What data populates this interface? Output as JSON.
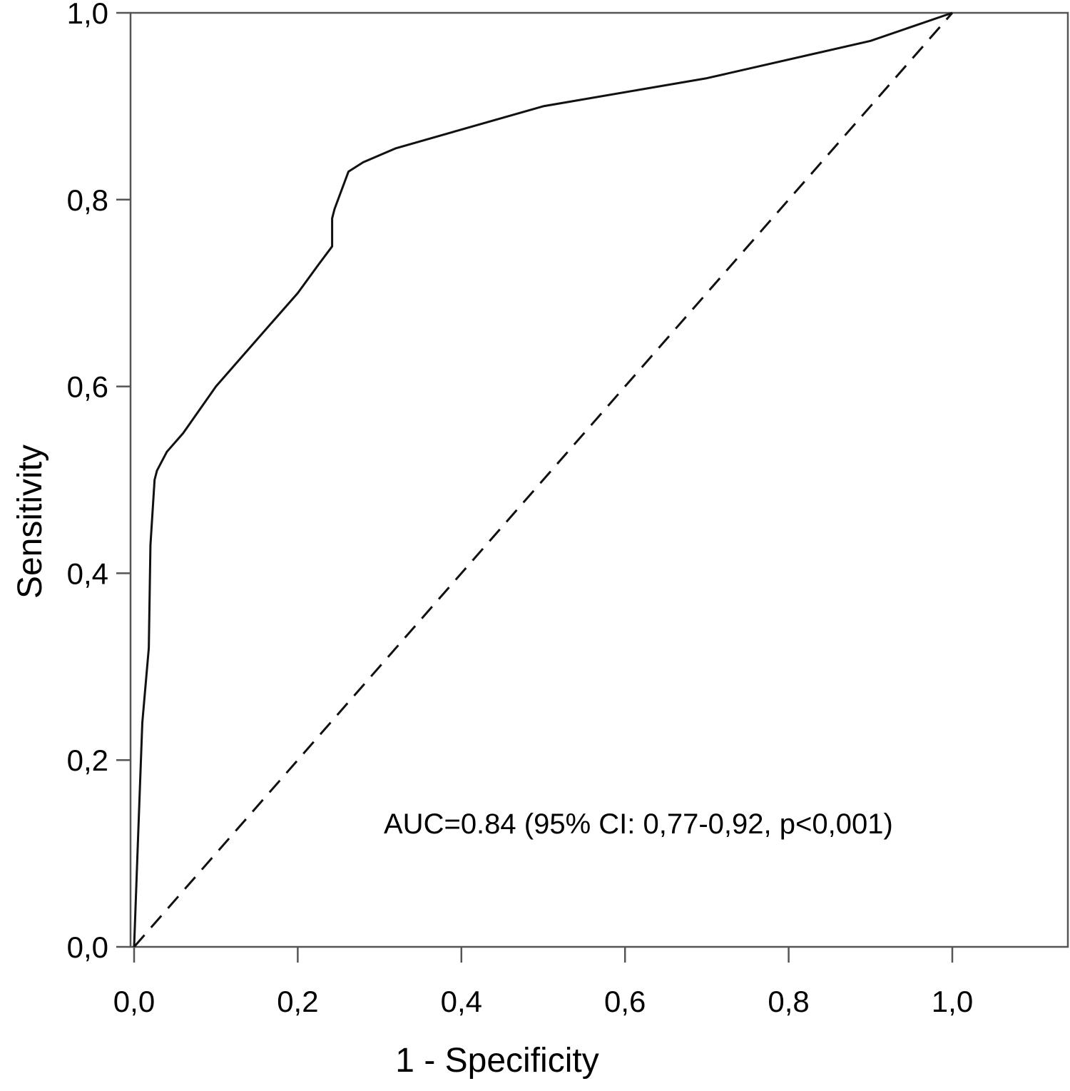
{
  "chart_data": {
    "type": "line",
    "xlabel": "1 - Specificity",
    "ylabel": "Sensitivity",
    "xlim": [
      0,
      1.14
    ],
    "ylim": [
      0,
      1.0
    ],
    "x_ticks": [
      0.0,
      0.2,
      0.4,
      0.6,
      0.8,
      1.0
    ],
    "x_tick_labels": [
      "0,0",
      "0,2",
      "0,4",
      "0,6",
      "0,8",
      "1,0"
    ],
    "y_ticks": [
      0.0,
      0.2,
      0.4,
      0.6,
      0.8,
      1.0
    ],
    "y_tick_labels": [
      "0,0",
      "0,2",
      "0,4",
      "0,6",
      "0,8",
      "1,0"
    ],
    "grid": false,
    "series": [
      {
        "style": "solid",
        "x": [
          0.0,
          0.0,
          0.005,
          0.01,
          0.018,
          0.02,
          0.025,
          0.028,
          0.04,
          0.06,
          0.1,
          0.15,
          0.2,
          0.225,
          0.242,
          0.242,
          0.245,
          0.262,
          0.28,
          0.32,
          0.5,
          0.7,
          0.9,
          1.0
        ],
        "y": [
          0.0,
          0.0,
          0.12,
          0.24,
          0.32,
          0.43,
          0.5,
          0.51,
          0.53,
          0.55,
          0.6,
          0.65,
          0.7,
          0.73,
          0.75,
          0.78,
          0.79,
          0.83,
          0.84,
          0.855,
          0.9,
          0.93,
          0.97,
          1.0
        ]
      },
      {
        "style": "dashed",
        "x": [
          0.0,
          1.0
        ],
        "y": [
          0.0,
          1.0
        ]
      }
    ],
    "annotations": [
      {
        "text": "AUC=0.84 (95% CI: 0,77-0,92, p<0,001)"
      }
    ]
  }
}
